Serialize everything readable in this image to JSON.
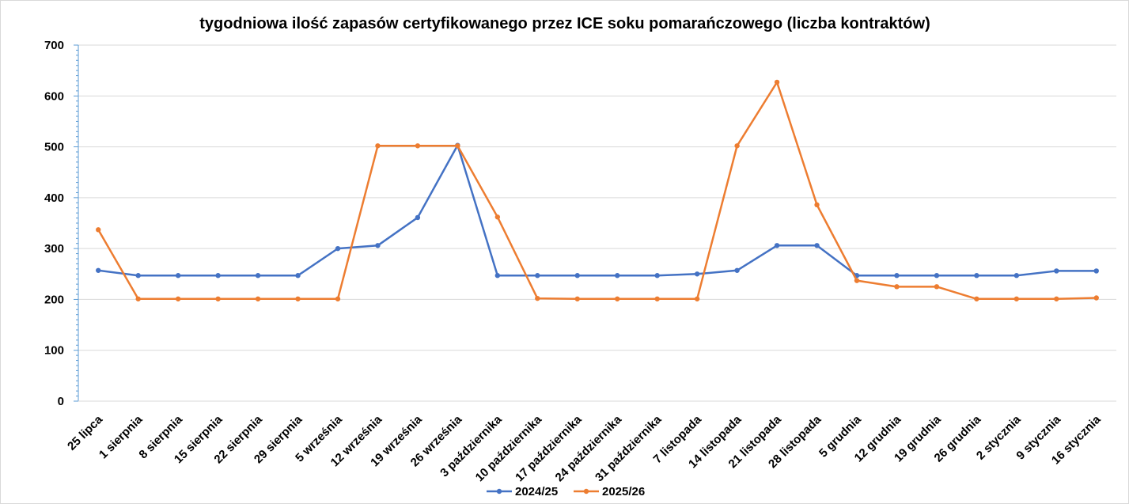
{
  "chart_data": {
    "type": "line",
    "title": "tygodniowa ilość zapasów certyfikowanego przez ICE soku pomarańczowego (liczba kontraktów)",
    "xlabel": "",
    "ylabel": "",
    "ylim": [
      0,
      700
    ],
    "yticks": [
      "0",
      "100",
      "200",
      "300",
      "400",
      "500",
      "600",
      "700"
    ],
    "grid": "horizontal",
    "legend_position": "bottom",
    "categories": [
      "25 lipca",
      "1 sierpnia",
      "8 sierpnia",
      "15 sierpnia",
      "22 sierpnia",
      "29 sierpnia",
      "5 września",
      "12 września",
      "19 września",
      "26 września",
      "3 października",
      "10 października",
      "17 października",
      "24 października",
      "31 października",
      "7 listopada",
      "14 listopada",
      "21 listopada",
      "28 listopada",
      "5 grudnia",
      "12 grudnia",
      "19 grudnia",
      "26 grudnia",
      "2 stycznia",
      "9 stycznia",
      "16 stycznia"
    ],
    "series": [
      {
        "name": "2024/25",
        "color": "#4472C4",
        "values": [
          257,
          247,
          247,
          247,
          247,
          247,
          300,
          306,
          361,
          503,
          247,
          247,
          247,
          247,
          247,
          250,
          257,
          306,
          306,
          247,
          247,
          247,
          247,
          247,
          256,
          256
        ]
      },
      {
        "name": "2025/26",
        "color": "#ED7D31",
        "values": [
          337,
          201,
          201,
          201,
          201,
          201,
          201,
          502,
          502,
          502,
          362,
          202,
          201,
          201,
          201,
          201,
          502,
          627,
          386,
          237,
          225,
          225,
          201,
          201,
          201,
          203
        ]
      }
    ]
  }
}
